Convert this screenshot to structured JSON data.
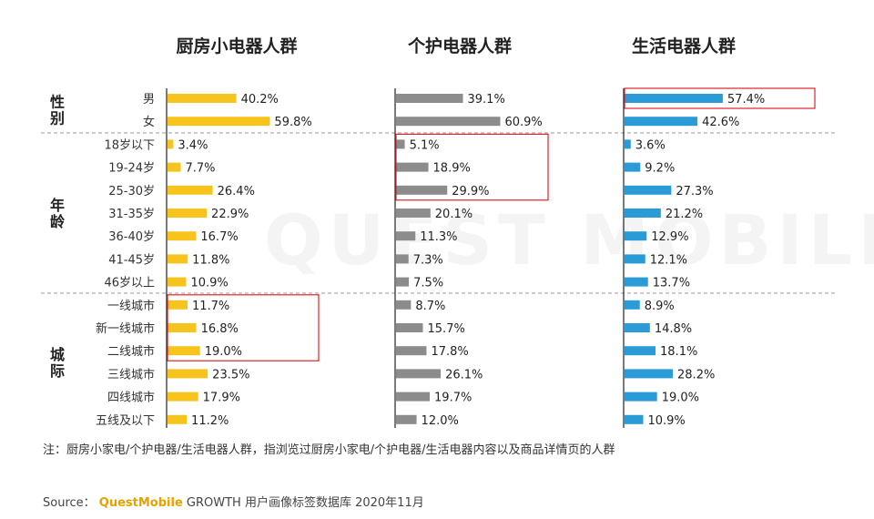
{
  "watermark": "QUEST MOBILE",
  "chart_data": {
    "type": "bar",
    "orientation": "horizontal",
    "unit": "%",
    "titles": [
      "厨房小电器人群",
      "个护电器人群",
      "生活电器人群"
    ],
    "groups": [
      {
        "label": "性别",
        "categories": [
          "男",
          "女"
        ]
      },
      {
        "label": "年龄",
        "categories": [
          "18岁以下",
          "19-24岁",
          "25-30岁",
          "31-35岁",
          "36-40岁",
          "41-45岁",
          "46岁以上"
        ]
      },
      {
        "label": "城际",
        "categories": [
          "一线城市",
          "新一线城市",
          "二线城市",
          "三线城市",
          "四线城市",
          "五线及以下"
        ]
      }
    ],
    "series": [
      {
        "name": "厨房小电器人群",
        "color": "#F7C41D",
        "values": [
          40.2,
          59.8,
          3.4,
          7.7,
          26.4,
          22.9,
          16.7,
          11.8,
          10.9,
          11.7,
          16.8,
          19.0,
          23.5,
          17.9,
          11.2
        ]
      },
      {
        "name": "个护电器人群",
        "color": "#8C8C8C",
        "values": [
          39.1,
          60.9,
          5.1,
          18.9,
          29.9,
          20.1,
          11.3,
          7.3,
          7.5,
          8.7,
          15.7,
          17.8,
          26.1,
          19.7,
          12.0
        ]
      },
      {
        "name": "生活电器人群",
        "color": "#2A9BD6",
        "values": [
          57.4,
          42.6,
          3.6,
          9.2,
          27.3,
          21.2,
          12.9,
          12.1,
          13.7,
          8.9,
          14.8,
          18.1,
          28.2,
          19.0,
          10.9
        ]
      }
    ],
    "highlights": [
      {
        "series": 0,
        "rows": [
          9,
          11
        ]
      },
      {
        "series": 1,
        "rows": [
          2,
          4
        ]
      },
      {
        "series": 2,
        "rows": [
          0,
          0
        ]
      }
    ],
    "highlight_color": "#D9262B"
  },
  "footnote": "注：厨房小家电/个护电器/生活电器人群，指浏览过厨房小家电/个护电器/生活电器内容以及商品详情页的人群",
  "source": {
    "label": "Source：",
    "brand": "QuestMobile",
    "text": " GROWTH 用户画像标签数据库 2020年11月"
  }
}
